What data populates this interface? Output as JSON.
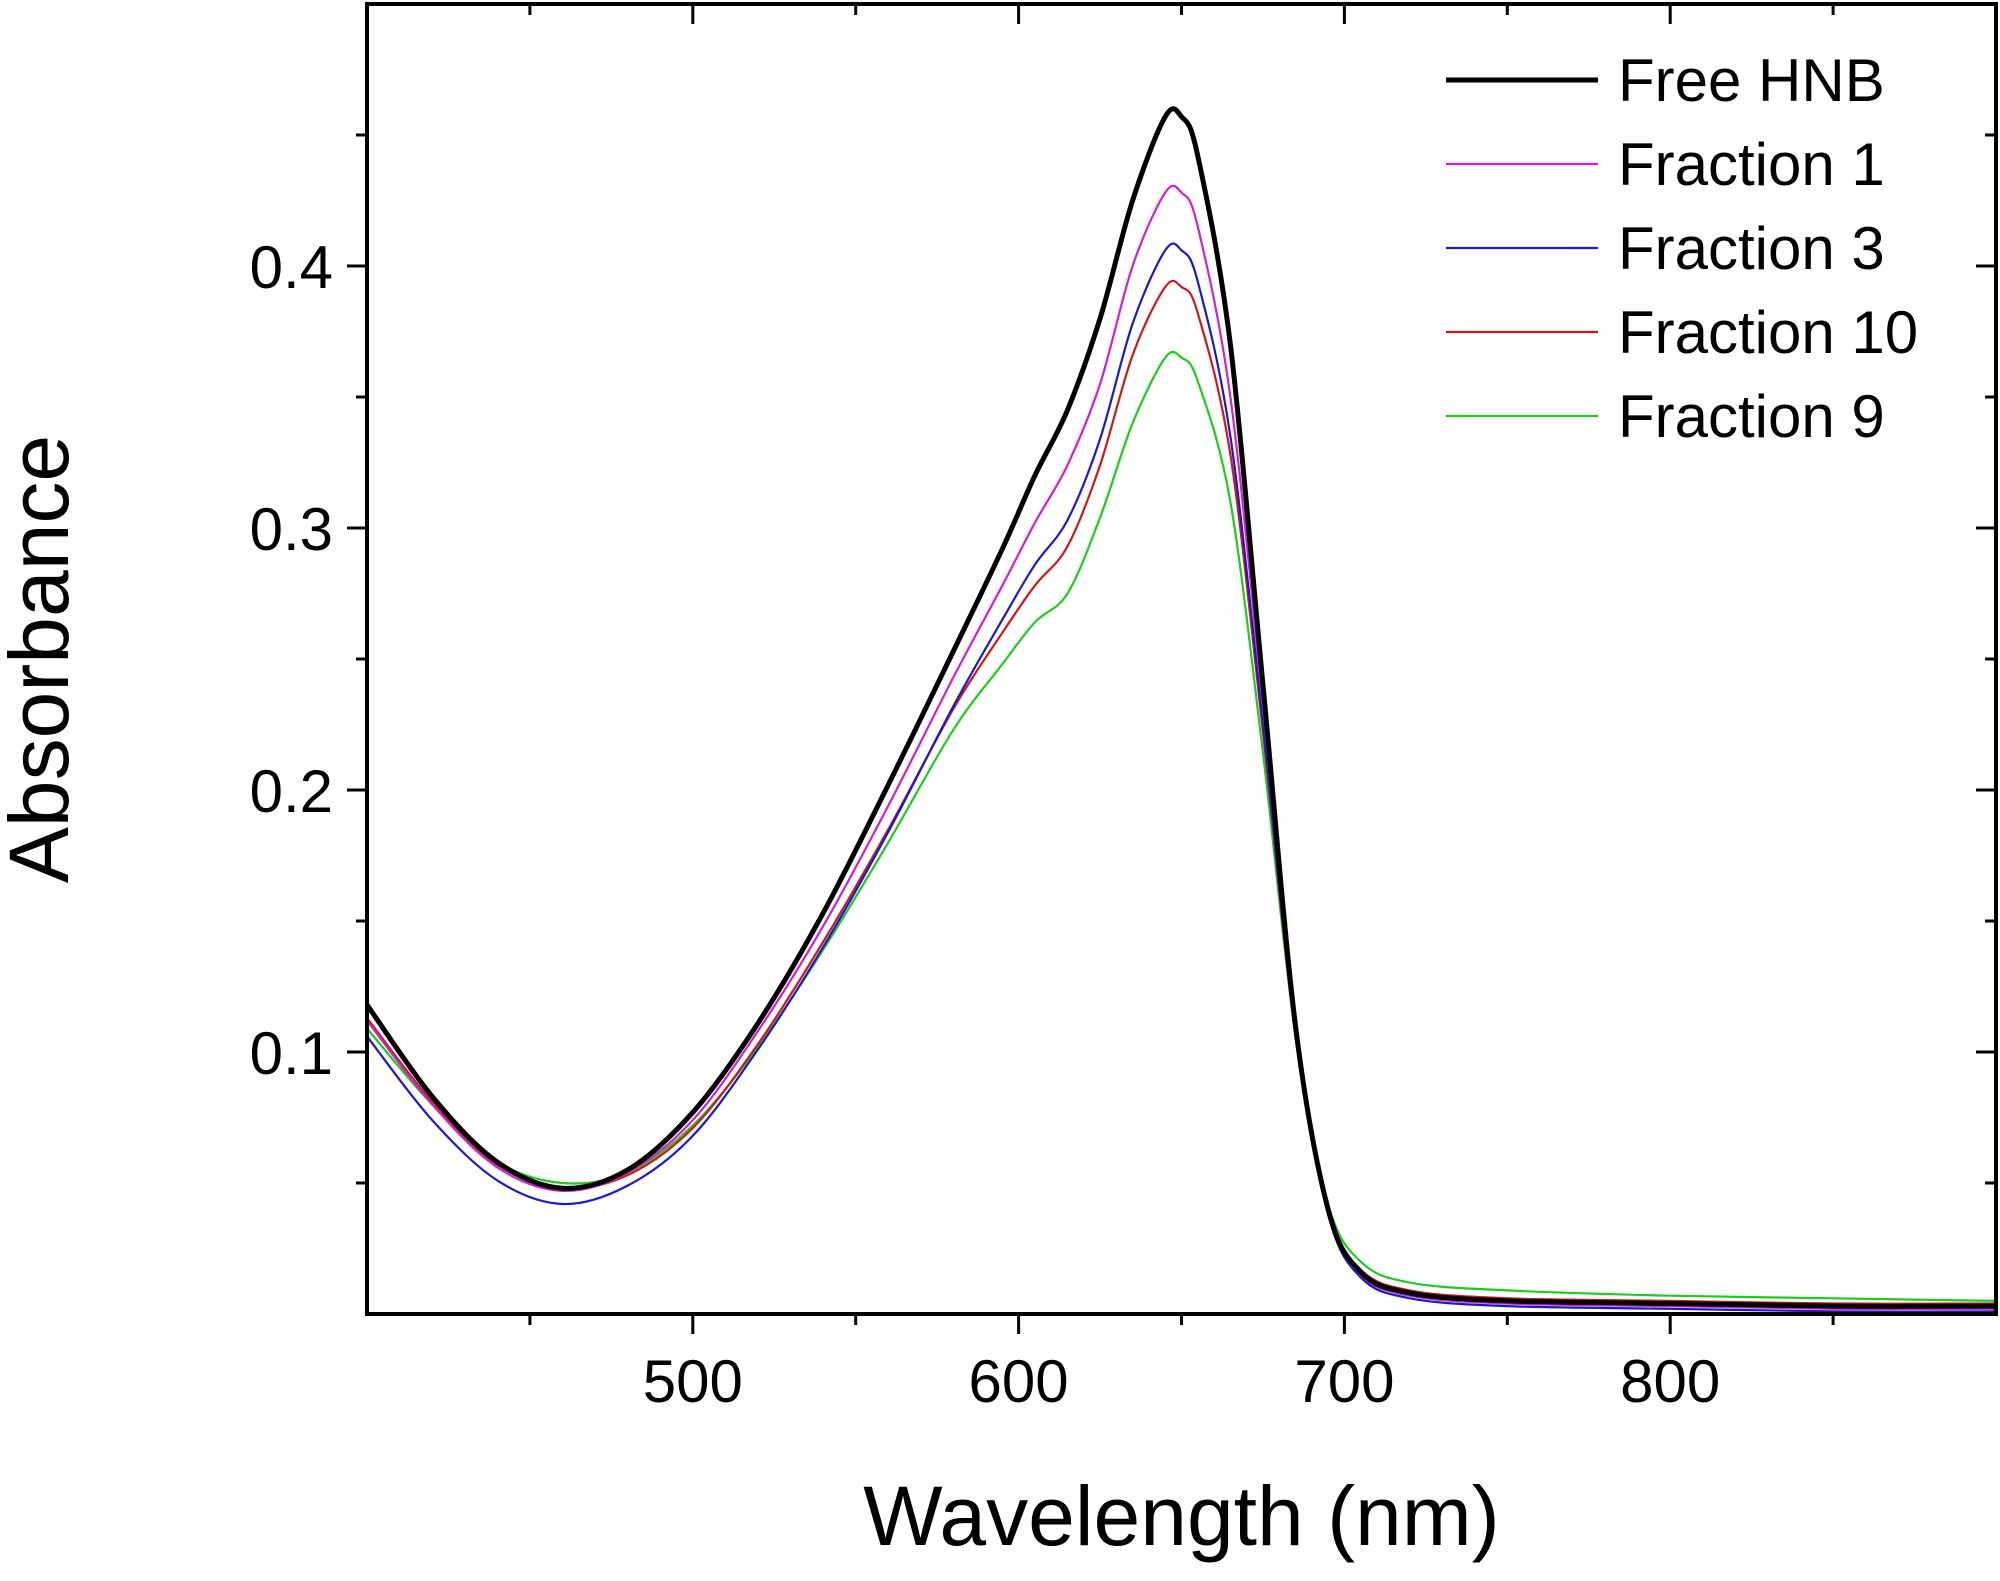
{
  "chart_data": {
    "type": "line",
    "title": "",
    "xlabel": "Wavelength (nm)",
    "ylabel": "Absorbance",
    "xlim": [
      400,
      900
    ],
    "ylim": [
      0,
      0.5
    ],
    "x_ticks": [
      500,
      600,
      700,
      800
    ],
    "x_minor_ticks": [
      450,
      550,
      650,
      750,
      850
    ],
    "y_ticks": [
      0.1,
      0.2,
      0.3,
      0.4
    ],
    "y_minor_ticks": [
      0.05,
      0.15,
      0.25,
      0.35,
      0.45
    ],
    "x_tick_labels": [
      "500",
      "600",
      "700",
      "800"
    ],
    "y_tick_labels": [
      "0.1",
      "0.2",
      "0.3",
      "0.4"
    ],
    "grid": false,
    "legend_position": "top-right",
    "series": [
      {
        "name": "Free HNB",
        "color": "#000000",
        "line": "thick",
        "x": [
          400,
          420,
          440,
          460,
          480,
          500,
          520,
          540,
          560,
          580,
          595,
          605,
          615,
          625,
          635,
          645,
          650,
          655,
          665,
          675,
          685,
          695,
          705,
          720,
          750,
          800,
          850,
          900
        ],
        "y": [
          0.118,
          0.083,
          0.058,
          0.048,
          0.055,
          0.077,
          0.111,
          0.153,
          0.202,
          0.253,
          0.292,
          0.32,
          0.345,
          0.38,
          0.425,
          0.457,
          0.457,
          0.442,
          0.37,
          0.24,
          0.11,
          0.04,
          0.016,
          0.008,
          0.005,
          0.004,
          0.003,
          0.003
        ]
      },
      {
        "name": "Fraction 1",
        "color": "#d020d0",
        "line": "thin",
        "x": [
          400,
          420,
          440,
          460,
          480,
          500,
          520,
          540,
          560,
          580,
          595,
          605,
          615,
          625,
          635,
          645,
          650,
          655,
          665,
          675,
          685,
          695,
          705,
          720,
          750,
          800,
          850,
          900
        ],
        "y": [
          0.112,
          0.08,
          0.056,
          0.047,
          0.054,
          0.074,
          0.108,
          0.148,
          0.194,
          0.243,
          0.278,
          0.302,
          0.324,
          0.355,
          0.4,
          0.428,
          0.428,
          0.415,
          0.35,
          0.232,
          0.108,
          0.039,
          0.015,
          0.007,
          0.004,
          0.003,
          0.002,
          0.002
        ]
      },
      {
        "name": "Fraction 3",
        "color": "#1a1acc",
        "line": "thin",
        "x": [
          400,
          420,
          440,
          460,
          480,
          500,
          520,
          540,
          560,
          580,
          595,
          605,
          615,
          625,
          635,
          645,
          650,
          655,
          665,
          675,
          685,
          695,
          705,
          720,
          750,
          800,
          850,
          900
        ],
        "y": [
          0.106,
          0.074,
          0.051,
          0.042,
          0.049,
          0.068,
          0.101,
          0.14,
          0.184,
          0.232,
          0.265,
          0.286,
          0.303,
          0.334,
          0.378,
          0.406,
          0.406,
          0.394,
          0.335,
          0.225,
          0.106,
          0.038,
          0.014,
          0.006,
          0.003,
          0.002,
          0.001,
          0.001
        ]
      },
      {
        "name": "Fraction 10",
        "color": "#cc1a1a",
        "line": "thin",
        "x": [
          400,
          420,
          440,
          460,
          480,
          500,
          520,
          540,
          560,
          580,
          595,
          605,
          615,
          625,
          635,
          645,
          650,
          655,
          665,
          675,
          685,
          695,
          705,
          720,
          750,
          800,
          850,
          900
        ],
        "y": [
          0.113,
          0.081,
          0.057,
          0.048,
          0.053,
          0.071,
          0.103,
          0.142,
          0.185,
          0.231,
          0.26,
          0.278,
          0.293,
          0.324,
          0.366,
          0.392,
          0.392,
          0.382,
          0.328,
          0.222,
          0.106,
          0.04,
          0.017,
          0.009,
          0.006,
          0.005,
          0.004,
          0.004
        ]
      },
      {
        "name": "Fraction 9",
        "color": "#1ecc1e",
        "line": "thin",
        "x": [
          400,
          420,
          440,
          460,
          480,
          500,
          520,
          540,
          560,
          580,
          595,
          605,
          615,
          625,
          635,
          645,
          650,
          655,
          665,
          675,
          685,
          695,
          705,
          720,
          750,
          800,
          850,
          900
        ],
        "y": [
          0.109,
          0.08,
          0.058,
          0.05,
          0.054,
          0.072,
          0.102,
          0.139,
          0.18,
          0.223,
          0.248,
          0.264,
          0.275,
          0.304,
          0.34,
          0.365,
          0.365,
          0.356,
          0.31,
          0.214,
          0.106,
          0.042,
          0.02,
          0.012,
          0.009,
          0.007,
          0.006,
          0.005
        ]
      }
    ]
  }
}
